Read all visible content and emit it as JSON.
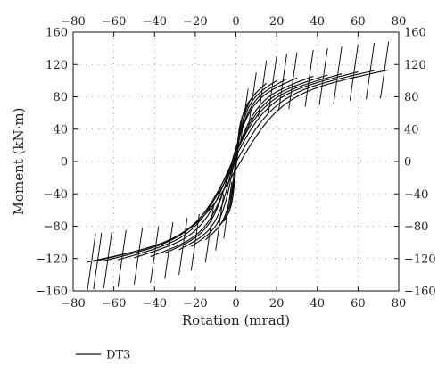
{
  "chart_data": {
    "type": "line",
    "title": "",
    "xlabel": "Rotation (mrad)",
    "ylabel": "Moment (kN·m)",
    "xlim": [
      -80,
      80
    ],
    "ylim": [
      -160,
      160
    ],
    "x_ticks": [
      -80,
      -60,
      -40,
      -20,
      0,
      20,
      40,
      60,
      80
    ],
    "y_ticks": [
      -160,
      -120,
      -80,
      -40,
      0,
      40,
      80,
      120,
      160
    ],
    "x_tick_labels": [
      "−80",
      "−60",
      "−40",
      "−20",
      "0",
      "20",
      "40",
      "60",
      "80"
    ],
    "y_tick_labels": [
      "−160",
      "−120",
      "−80",
      "−40",
      "0",
      "40",
      "80",
      "120",
      "160"
    ],
    "grid": true,
    "grid_style": "dotted",
    "mirror_ticks": true,
    "legend_position": "bottom-left",
    "line_color": "#111111",
    "series": [
      {
        "name": "DT3",
        "description": "hysteresis loops",
        "cycles": [
          {
            "pos_peak": [
              3,
              55
            ],
            "neg_peak": [
              -3,
              -60
            ]
          },
          {
            "pos_peak": [
              6,
              90
            ],
            "neg_peak": [
              -6,
              -95
            ]
          },
          {
            "pos_peak": [
              10,
              110
            ],
            "neg_peak": [
              -10,
              -110
            ]
          },
          {
            "pos_peak": [
              15,
              125
            ],
            "neg_peak": [
              -15,
              -125
            ]
          },
          {
            "pos_peak": [
              20,
              130
            ],
            "neg_peak": [
              -22,
              -135
            ]
          },
          {
            "pos_peak": [
              25,
              133
            ],
            "neg_peak": [
              -28,
              -140
            ]
          },
          {
            "pos_peak": [
              30,
              135
            ],
            "neg_peak": [
              -35,
              -145
            ]
          },
          {
            "pos_peak": [
              38,
              138
            ],
            "neg_peak": [
              -42,
              -150
            ]
          },
          {
            "pos_peak": [
              45,
              140
            ],
            "neg_peak": [
              -50,
              -152
            ]
          },
          {
            "pos_peak": [
              52,
              142
            ],
            "neg_peak": [
              -58,
              -155
            ]
          },
          {
            "pos_peak": [
              60,
              145
            ],
            "neg_peak": [
              -65,
              -157
            ]
          },
          {
            "pos_peak": [
              68,
              147
            ],
            "neg_peak": [
              -70,
              -158
            ]
          },
          {
            "pos_peak": [
              75,
              148
            ],
            "neg_peak": [
              -73,
              -159
            ]
          }
        ]
      }
    ]
  }
}
